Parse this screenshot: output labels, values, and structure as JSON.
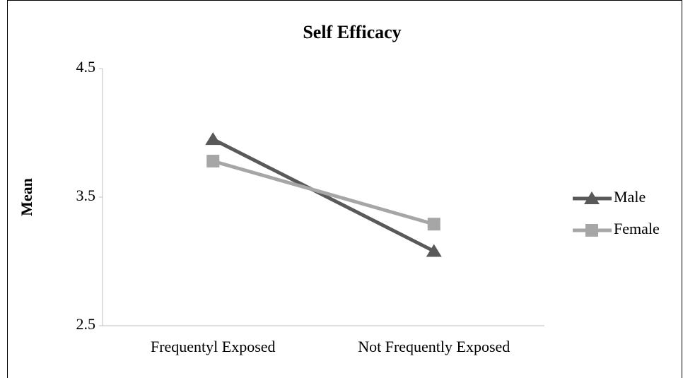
{
  "chart_data": {
    "type": "line",
    "title": "Self Efficacy",
    "y_label": "Mean",
    "categories": [
      "Frequentyl Exposed",
      "Not Frequently Exposed"
    ],
    "series": [
      {
        "name": "Male",
        "color": "#595959",
        "marker": "triangle",
        "values": [
          3.95,
          3.08
        ]
      },
      {
        "name": "Female",
        "color": "#a6a6a6",
        "marker": "square",
        "values": [
          3.78,
          3.29
        ]
      }
    ],
    "ylim": [
      2.5,
      4.5
    ],
    "yticks": [
      2.5,
      3.5,
      4.5
    ],
    "grid": false,
    "legend": "right"
  }
}
